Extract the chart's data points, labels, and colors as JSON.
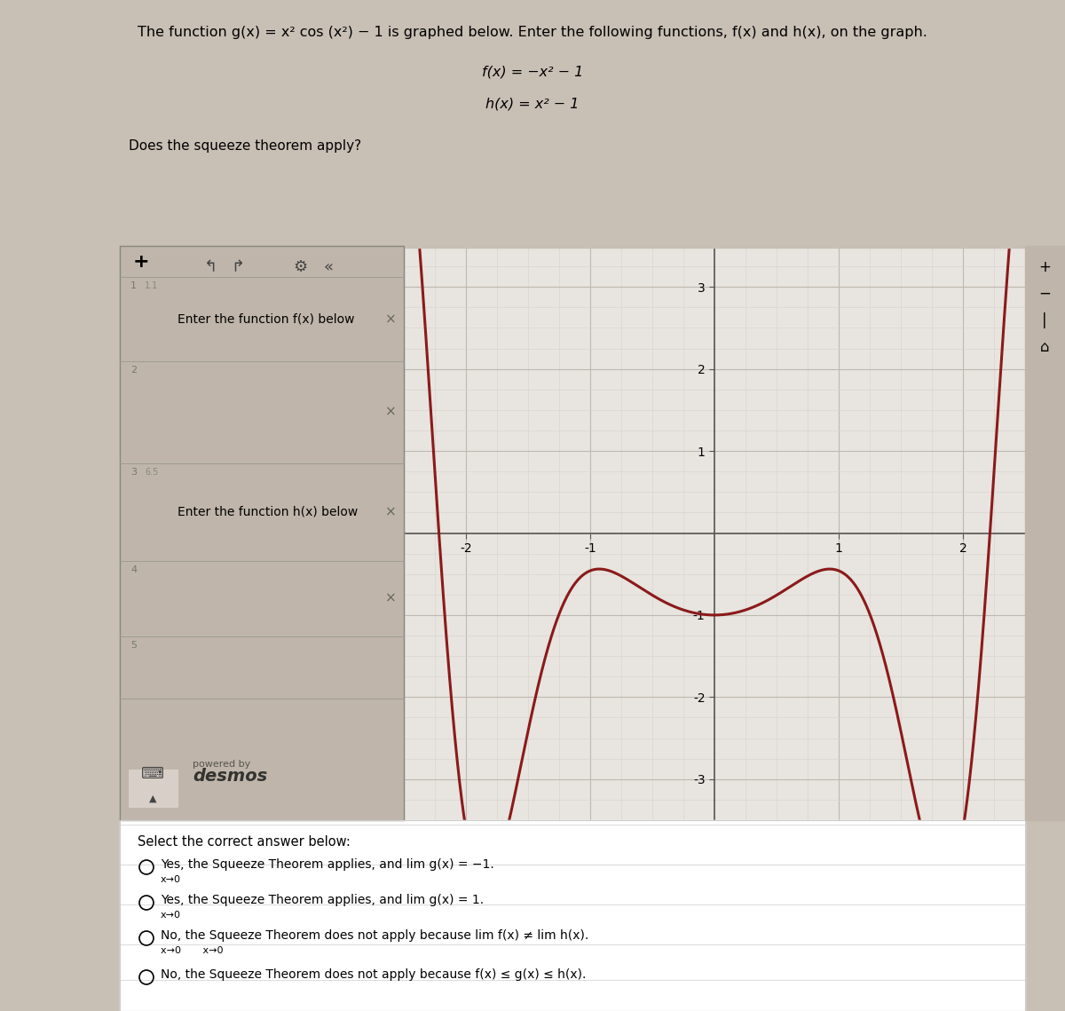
{
  "title": "The function g(x) = x² cos (x²) − 1 is graphed below. Enter the following functions, f(x) and h(x), on the graph.",
  "f_label": "f(x) = −x² − 1",
  "h_label": "h(x) = x² − 1",
  "squeeze_question": "Does the squeeze theorem apply?",
  "curve_color": "#8B1A1A",
  "bg_outer": "#c8bfb5",
  "bg_graph": "#e8e4df",
  "bg_panel": "#bfb5aa",
  "bg_answers": "#ffffff",
  "grid_major_color": "#c0b8b0",
  "grid_minor_color": "#d8d2cc",
  "axis_color": "#555550",
  "enter_fx": "Enter the function f(x) below",
  "enter_hx": "Enter the function h(x) below",
  "desmos_label": "desmos",
  "powered_by": "powered by",
  "answer1_main": "Yes, the Squeeze Theorem applies, and lim g(x) = −1.",
  "answer1_sub": "x→0",
  "answer2_main": "Yes, the Squeeze Theorem applies, and lim g(x) = 1.",
  "answer2_sub": "x→0",
  "answer3_main": "No, the Squeeze Theorem does not apply because lim f(x) ≠ lim h(x).",
  "answer3_sub": "x→0       x→0",
  "answer4_main": "No, the Squeeze Theorem does not apply because f(x) ≤ g(x) ≤ h(x).",
  "select_text": "Select the correct answer below:"
}
